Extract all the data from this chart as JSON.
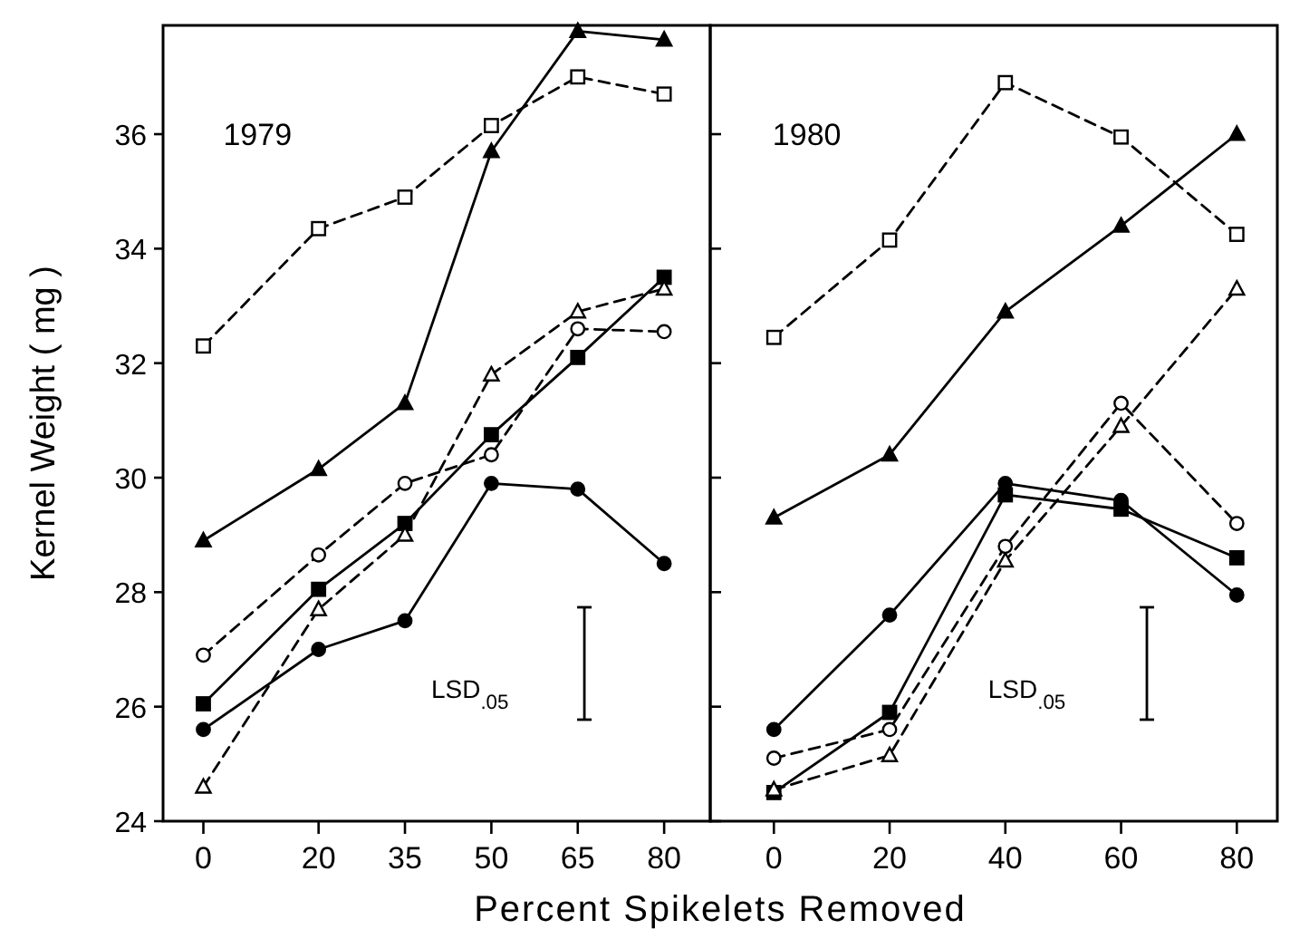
{
  "chart_data": [
    {
      "type": "line",
      "title": "1979",
      "xlabel": "Percent Spikelets Removed",
      "ylabel": "Kernel Weight ( mg )",
      "x": [
        0,
        20,
        35,
        50,
        65,
        80
      ],
      "xlim": [
        -7,
        88
      ],
      "xticks": [
        0,
        20,
        35,
        50,
        65,
        80
      ],
      "ylim": [
        24,
        37.9
      ],
      "yticks": [
        24,
        26,
        28,
        30,
        32,
        34,
        36
      ],
      "grid": false,
      "annotations": [
        "LSD$_{.05}$"
      ],
      "series": [
        {
          "color": "#000000",
          "marker": "square",
          "line_style": "dashed",
          "values": [
            32.3,
            34.35,
            34.9,
            36.15,
            37.0,
            36.7
          ]
        },
        {
          "color": "#000000",
          "marker": "triangle",
          "line_style": "solid",
          "values": [
            28.9,
            30.15,
            31.3,
            35.7,
            37.8,
            37.65
          ]
        },
        {
          "color": "#000000",
          "marker": "square",
          "line_style": "solid",
          "values": [
            26.05,
            28.05,
            29.2,
            30.75,
            32.1,
            33.5
          ]
        },
        {
          "color": "#000000",
          "marker": "circle",
          "line_style": "dashed",
          "values": [
            26.9,
            28.65,
            29.9,
            30.4,
            32.6,
            32.55
          ]
        },
        {
          "color": "#000000",
          "marker": "triangle",
          "line_style": "dashed",
          "values": [
            24.6,
            27.7,
            29.0,
            31.8,
            32.9,
            33.3
          ]
        },
        {
          "color": "#000000",
          "marker": "circle",
          "line_style": "solid",
          "values": [
            25.6,
            27.0,
            27.5,
            29.9,
            29.8,
            28.5
          ]
        }
      ]
    },
    {
      "type": "line",
      "title": "1980",
      "x": [
        0,
        20,
        40,
        60,
        80
      ],
      "xlim": [
        -11,
        87
      ],
      "xticks": [
        0,
        20,
        40,
        60,
        80
      ],
      "ylim": [
        24,
        37.9
      ],
      "yticks": [
        24,
        26,
        28,
        30,
        32,
        34,
        36
      ],
      "tick_labels": "x",
      "grid": false,
      "annotations": [
        "LSD$_{.05}$"
      ],
      "series": [
        {
          "color": "#000000",
          "marker": "square",
          "line_style": "dashed",
          "values": [
            32.45,
            34.15,
            36.9,
            35.95,
            34.25
          ]
        },
        {
          "color": "#000000",
          "marker": "triangle",
          "line_style": "solid",
          "values": [
            29.3,
            30.4,
            32.9,
            34.4,
            36.0
          ]
        },
        {
          "color": "#000000",
          "marker": "square",
          "line_style": "solid",
          "values": [
            24.5,
            25.9,
            29.7,
            29.45,
            28.6
          ]
        },
        {
          "color": "#000000",
          "marker": "triangle",
          "line_style": "dashed",
          "values": [
            24.55,
            25.15,
            28.55,
            30.9,
            33.3
          ]
        },
        {
          "color": "#000000",
          "marker": "circle",
          "line_style": "dashed",
          "values": [
            25.1,
            25.6,
            28.8,
            31.3,
            29.2
          ]
        },
        {
          "color": "#000000",
          "marker": "circle",
          "line_style": "solid",
          "values": [
            25.6,
            27.6,
            29.9,
            29.6,
            27.95
          ]
        }
      ]
    }
  ]
}
